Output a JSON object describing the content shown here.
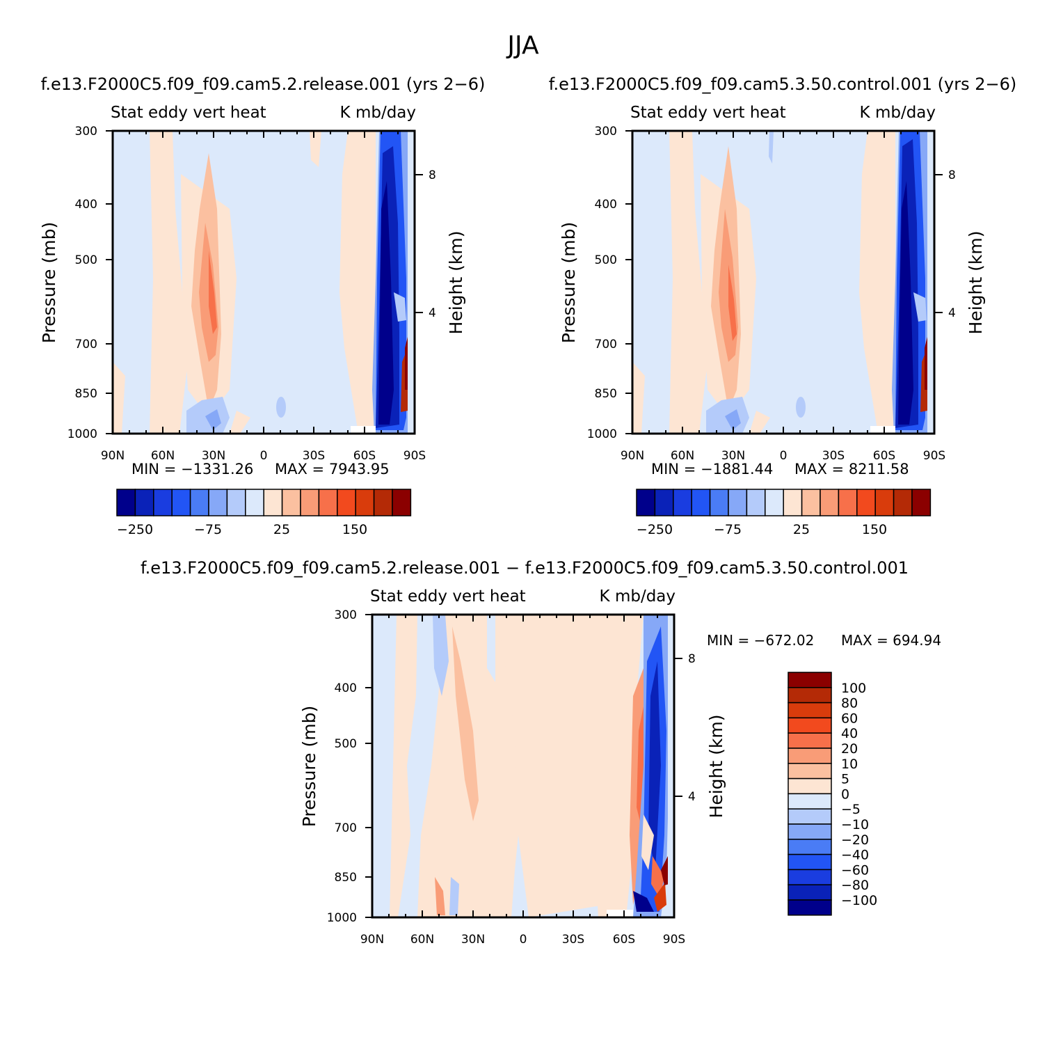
{
  "page_title": "JJA",
  "chart_data": [
    {
      "type": "heatmap",
      "title": "f.e13.F2000C5.f09_f09.cam5.2.release.001  (yrs 2−6)",
      "subtitle_left": "Stat  eddy  vert  heat",
      "subtitle_right": "K  mb/day",
      "xlabel": "",
      "ylabel": "Pressure  (mb)",
      "ylabel_right": "Height  (km)",
      "xticks": [
        "90N",
        "60N",
        "30N",
        "0",
        "30S",
        "60S",
        "90S"
      ],
      "yticks": [
        "300",
        "400",
        "500",
        "700",
        "850",
        "1000"
      ],
      "yticks_right": [
        "8",
        "4"
      ],
      "min_text": "MIN  =  −1331.26",
      "max_text": "MAX  =  7943.95",
      "colorbar_labels": [
        "−250",
        "−75",
        "25",
        "150"
      ]
    },
    {
      "type": "heatmap",
      "title": "f.e13.F2000C5.f09_f09.cam5.3.50.control.001  (yrs 2−6)",
      "subtitle_left": "Stat  eddy  vert  heat",
      "subtitle_right": "K  mb/day",
      "xlabel": "",
      "ylabel": "Pressure  (mb)",
      "ylabel_right": "Height  (km)",
      "xticks": [
        "90N",
        "60N",
        "30N",
        "0",
        "30S",
        "60S",
        "90S"
      ],
      "yticks": [
        "300",
        "400",
        "500",
        "700",
        "850",
        "1000"
      ],
      "yticks_right": [
        "8",
        "4"
      ],
      "min_text": "MIN  =  −1881.44",
      "max_text": "MAX  =  8211.58",
      "colorbar_labels": [
        "−250",
        "−75",
        "25",
        "150"
      ]
    },
    {
      "type": "heatmap",
      "title": "f.e13.F2000C5.f09_f09.cam5.2.release.001  −  f.e13.F2000C5.f09_f09.cam5.3.50.control.001",
      "subtitle_left": "Stat  eddy  vert  heat",
      "subtitle_right": "K  mb/day",
      "xlabel": "",
      "ylabel": "Pressure  (mb)",
      "ylabel_right": "Height  (km)",
      "xticks": [
        "90N",
        "60N",
        "30N",
        "0",
        "30S",
        "60S",
        "90S"
      ],
      "yticks": [
        "300",
        "400",
        "500",
        "700",
        "850",
        "1000"
      ],
      "yticks_right": [
        "8",
        "4"
      ],
      "min_text": "MIN  =  −672.02",
      "max_text": "MAX  =  694.94",
      "colorbar_labels": [
        "100",
        "80",
        "60",
        "40",
        "20",
        "10",
        "5",
        "0",
        "−5",
        "−10",
        "−20",
        "−40",
        "−60",
        "−80",
        "−100"
      ]
    }
  ],
  "colors": {
    "scale": [
      "#00008b",
      "#0a22b8",
      "#1a3de0",
      "#2255f5",
      "#4a7cf5",
      "#86a8f7",
      "#b4cbfa",
      "#dce9fb",
      "#fde5d3",
      "#fbc0a0",
      "#f99c77",
      "#f7704a",
      "#f24a1e",
      "#d93c0c",
      "#b42a06",
      "#8b0000"
    ]
  }
}
